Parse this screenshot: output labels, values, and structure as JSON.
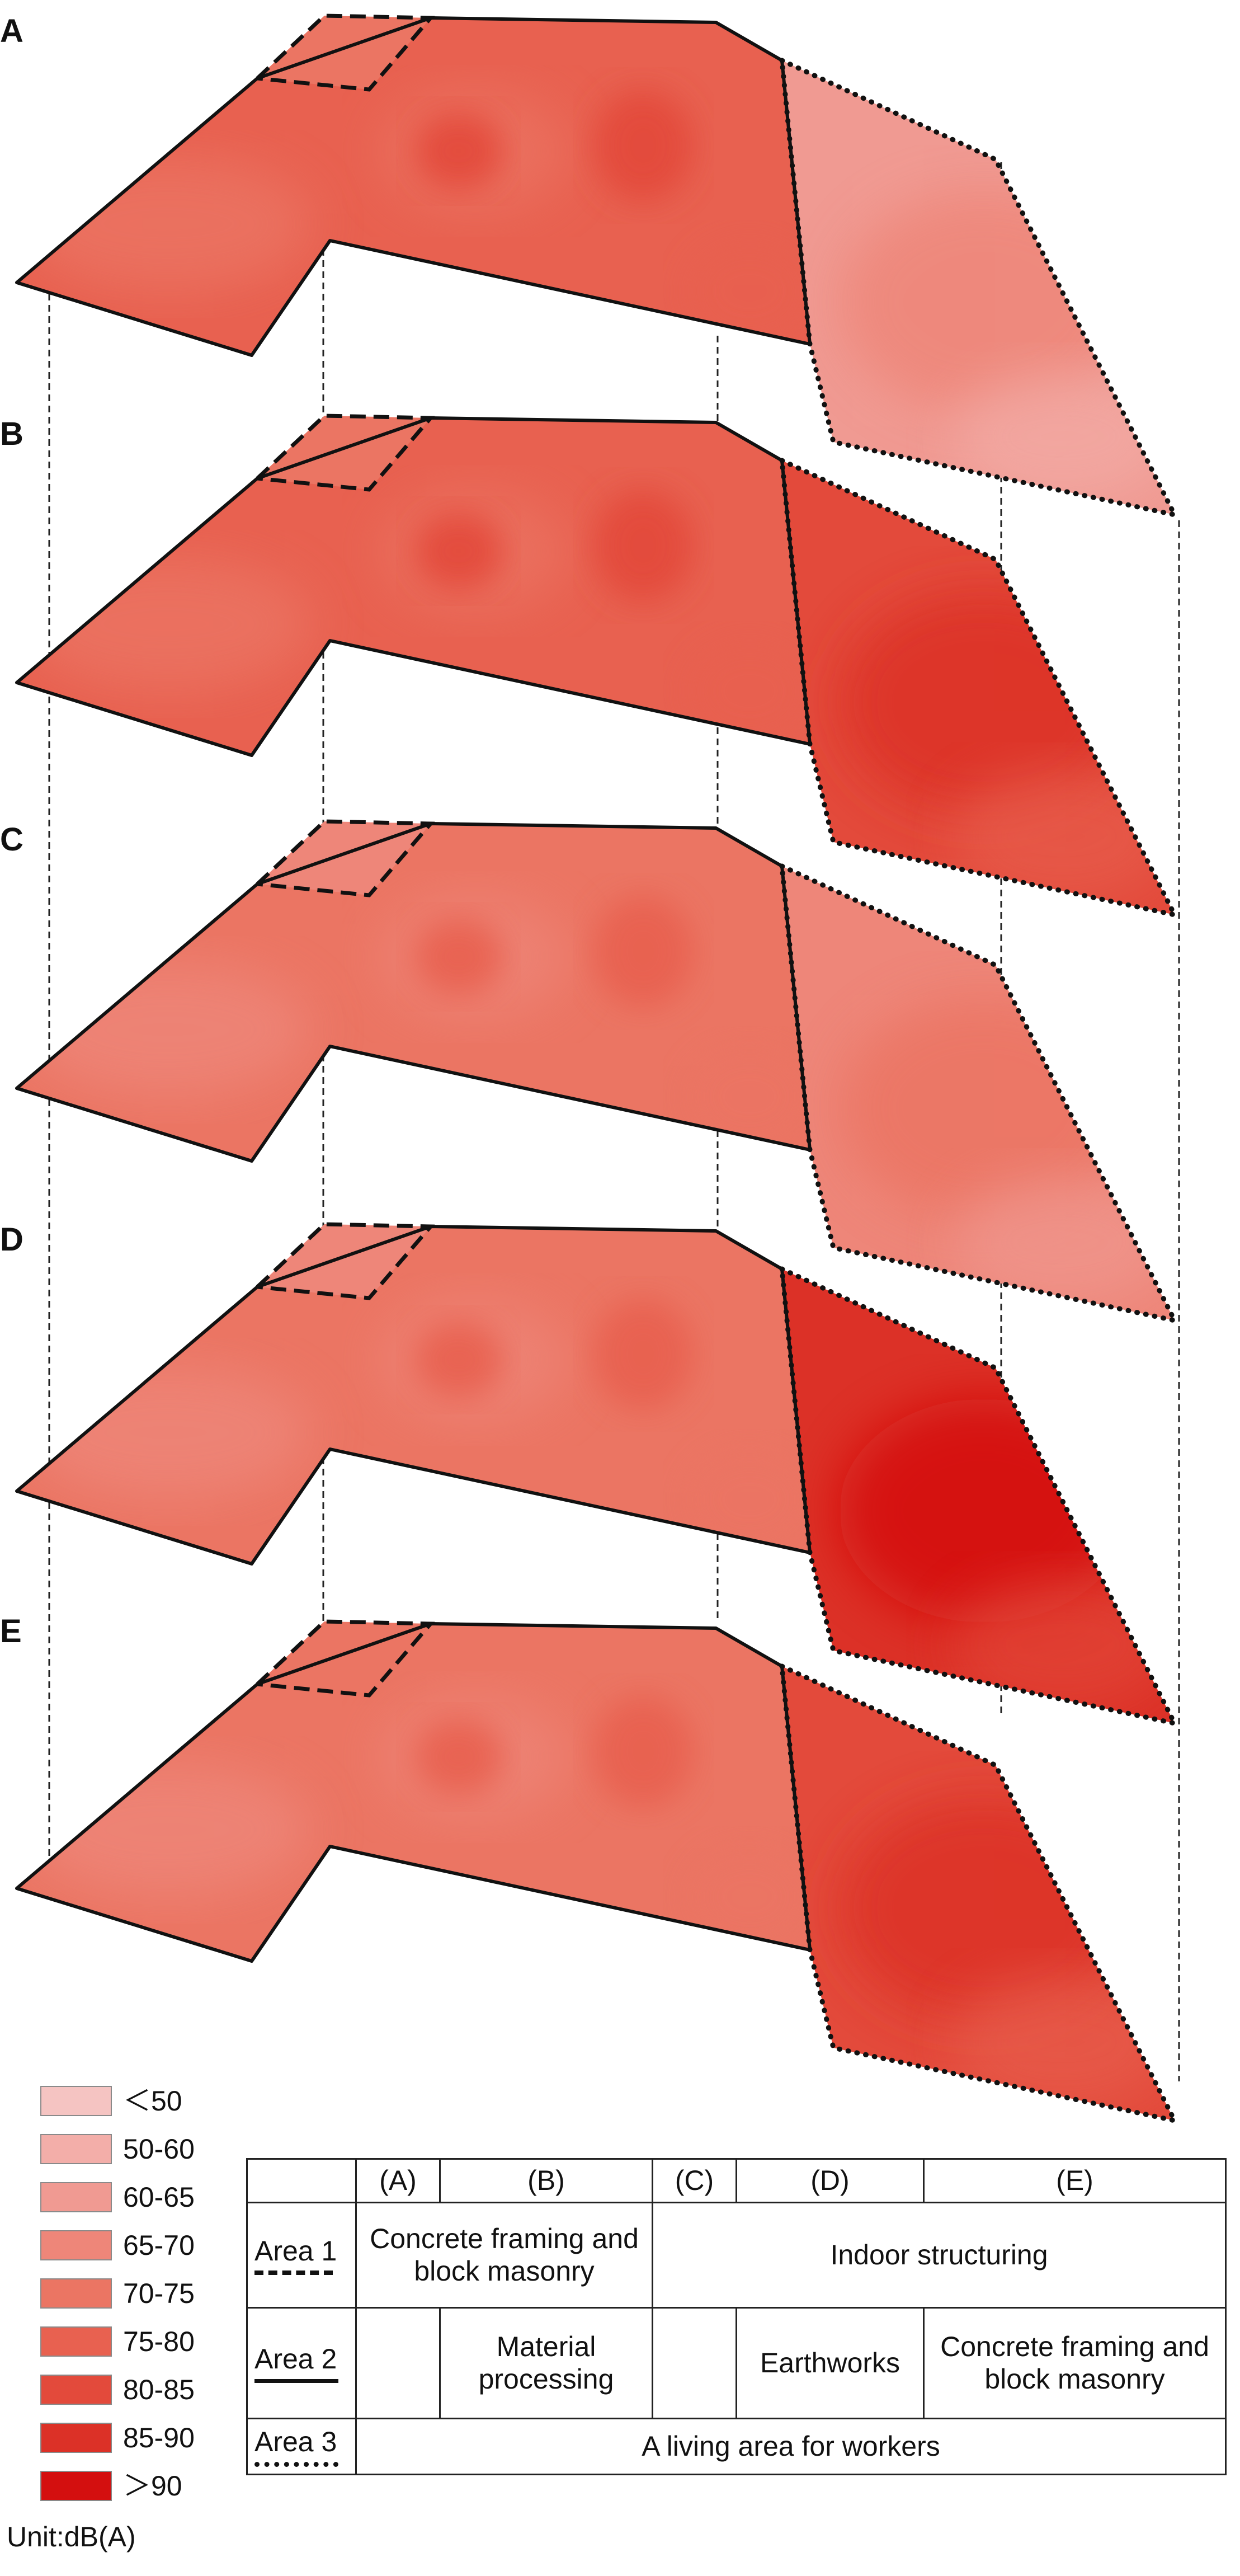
{
  "panels": [
    {
      "label": "A",
      "area1_level": "70-75",
      "area2_level": "75-80",
      "area3_level": "60-65"
    },
    {
      "label": "B",
      "area1_level": "70-75",
      "area2_level": "75-80",
      "area3_level": "80-85"
    },
    {
      "label": "C",
      "area1_level": "65-70",
      "area2_level": "70-75",
      "area3_level": "65-70"
    },
    {
      "label": "D",
      "area1_level": "65-70",
      "area2_level": "70-75",
      "area3_level": "85-90"
    },
    {
      "label": "E",
      "area1_level": "70-75",
      "area2_level": "70-75",
      "area3_level": "80-85"
    }
  ],
  "legend": {
    "items": [
      {
        "label": "＜50",
        "color": "#f5c4c2"
      },
      {
        "label": "50-60",
        "color": "#f3aea9"
      },
      {
        "label": "60-65",
        "color": "#f09a92"
      },
      {
        "label": "65-70",
        "color": "#ee8679"
      },
      {
        "label": "70-75",
        "color": "#eb7563"
      },
      {
        "label": "75-80",
        "color": "#e86150"
      },
      {
        "label": "80-85",
        "color": "#e34a3b"
      },
      {
        "label": "85-90",
        "color": "#dc3127"
      },
      {
        "label": "＞90",
        "color": "#d40f0f"
      }
    ],
    "unit": "Unit:dB(A)"
  },
  "table": {
    "stages": [
      "(A)",
      "(B)",
      "(C)",
      "(D)",
      "(E)"
    ],
    "area1": {
      "name": "Area 1",
      "line": "dashed",
      "stage_a_b": "Concrete framing and block masonry",
      "stage_c_e": "Indoor structuring"
    },
    "area2": {
      "name": "Area 2",
      "line": "solid",
      "stage_b": "Material processing",
      "stage_d": "Earthworks",
      "stage_e": "Concrete framing and block masonry"
    },
    "area3": {
      "name": "Area 3",
      "line": "dotted",
      "all_stages": "A living area for workers"
    }
  }
}
